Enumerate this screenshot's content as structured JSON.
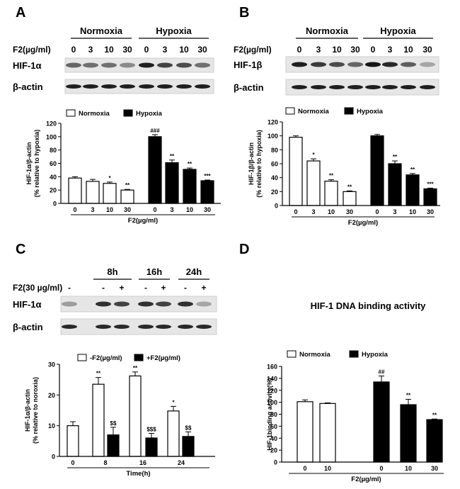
{
  "panels": {
    "A": {
      "letter": "A",
      "blot": {
        "groups": [
          "Normoxia",
          "Hypoxia"
        ],
        "dose_label": "F2(µg/ml)",
        "doses": [
          "0",
          "3",
          "10",
          "30",
          "0",
          "3",
          "10",
          "30"
        ],
        "rows": [
          "HIF-1α",
          "β-actin"
        ],
        "target_intensity": [
          0.55,
          0.5,
          0.5,
          0.35,
          0.95,
          0.75,
          0.7,
          0.5
        ],
        "actin_intensity": [
          0.95,
          0.95,
          0.95,
          0.95,
          0.95,
          0.95,
          0.95,
          0.95
        ]
      }
    },
    "B": {
      "letter": "B",
      "blot": {
        "groups": [
          "Normoxia",
          "Hypoxia"
        ],
        "dose_label": "F2(µg/ml)",
        "doses": [
          "0",
          "3",
          "10",
          "30",
          "0",
          "3",
          "10",
          "30"
        ],
        "rows": [
          "HIF-1β",
          "β-actin"
        ],
        "target_intensity": [
          0.95,
          0.8,
          0.7,
          0.55,
          1.0,
          0.9,
          0.6,
          0.2
        ],
        "actin_intensity": [
          0.95,
          0.95,
          0.95,
          0.95,
          0.95,
          0.95,
          0.95,
          0.95
        ]
      }
    },
    "C": {
      "letter": "C",
      "title": "",
      "blot": {
        "times": [
          "8h",
          "16h",
          "24h"
        ],
        "treat_label": "F2(30 µg/ml)",
        "treat": [
          "-",
          "-",
          "+",
          "-",
          "+",
          "-",
          "+"
        ],
        "rows": [
          "HIF-1α",
          "β-actin"
        ],
        "target_intensity": [
          0.25,
          0.85,
          0.75,
          0.85,
          0.75,
          0.85,
          0.2
        ],
        "actin_intensity": [
          0.9,
          0.9,
          0.9,
          0.9,
          0.9,
          0.9,
          0.9
        ]
      }
    },
    "D": {
      "letter": "D",
      "title": "HIF-1 DNA binding activity"
    }
  },
  "chart_data": [
    {
      "id": "A",
      "type": "bar",
      "ylabel": "HIF-1α/β-actin",
      "ylabel2": "(% relative to hypoxia)",
      "xlabel": "F2(µg/ml)",
      "ylim": [
        0,
        120
      ],
      "yticks": [
        0,
        20,
        40,
        60,
        80,
        100,
        120
      ],
      "legend": [
        "Normoxia",
        "Hypoxia"
      ],
      "categories": [
        "0",
        "3",
        "10",
        "30",
        "0",
        "3",
        "10",
        "30"
      ],
      "fills": [
        "open",
        "open",
        "open",
        "open",
        "filled",
        "filled",
        "filled",
        "filled"
      ],
      "values": [
        38,
        33,
        30,
        20,
        100,
        61,
        51,
        34
      ],
      "errors": [
        2,
        3,
        2,
        1,
        3,
        4,
        2,
        1
      ],
      "sig": [
        "",
        "",
        "*",
        "**",
        "###",
        "**",
        "**",
        "***"
      ]
    },
    {
      "id": "B",
      "type": "bar",
      "ylabel": "HIF-1β/β-actin",
      "ylabel2": "(% relative to hypoxia)",
      "xlabel": "F2(µg/ml)",
      "ylim": [
        0,
        120
      ],
      "yticks": [
        0,
        20,
        40,
        60,
        80,
        100,
        120
      ],
      "legend": [
        "Normoxia",
        "Hypoxia"
      ],
      "categories": [
        "0",
        "3",
        "10",
        "30",
        "0",
        "3",
        "10",
        "30"
      ],
      "fills": [
        "open",
        "open",
        "open",
        "open",
        "filled",
        "filled",
        "filled",
        "filled"
      ],
      "values": [
        98,
        64,
        35,
        20,
        100,
        60,
        44,
        24
      ],
      "errors": [
        2,
        3,
        2,
        1,
        2,
        4,
        2,
        1
      ],
      "sig": [
        "",
        "*",
        "**",
        "**",
        "",
        "**",
        "**",
        "***"
      ]
    },
    {
      "id": "C",
      "type": "bar",
      "ylabel": "HIF-1α/β-actin",
      "ylabel2": "(% relative to noroxia)",
      "xlabel": "Time(h)",
      "ylim": [
        0,
        30
      ],
      "yticks": [
        0,
        10,
        20,
        30
      ],
      "legend": [
        "-F2(µg/ml)",
        "+F2(µg/ml)"
      ],
      "categories": [
        "0",
        "8",
        "",
        "16",
        "",
        "24",
        ""
      ],
      "fills": [
        "open",
        "open",
        "filled",
        "open",
        "filled",
        "open",
        "filled"
      ],
      "values": [
        10,
        23.5,
        7,
        26.2,
        6,
        14.8,
        6.5
      ],
      "errors": [
        1.3,
        2.2,
        2.5,
        1.3,
        1.5,
        1.5,
        1.5
      ],
      "sig": [
        "",
        "**",
        "$$",
        "**",
        "$$$",
        "*",
        "$$"
      ]
    },
    {
      "id": "D",
      "type": "bar",
      "ylabel": "HIF-1binding activity(%)",
      "ylabel2": "",
      "xlabel": "F2(µg/ml)",
      "ylim": [
        0,
        160
      ],
      "yticks": [
        0,
        20,
        40,
        60,
        80,
        100,
        120,
        140,
        160
      ],
      "legend": [
        "Normoxia",
        "Hypoxia"
      ],
      "categories": [
        "0",
        "10",
        "0",
        "10",
        "30"
      ],
      "fills": [
        "open",
        "open",
        "filled",
        "filled",
        "filled"
      ],
      "values": [
        101,
        98,
        134,
        96,
        71
      ],
      "errors": [
        3,
        1,
        10,
        9,
        1
      ],
      "sig": [
        "",
        "",
        "##",
        "**",
        "**"
      ]
    }
  ]
}
